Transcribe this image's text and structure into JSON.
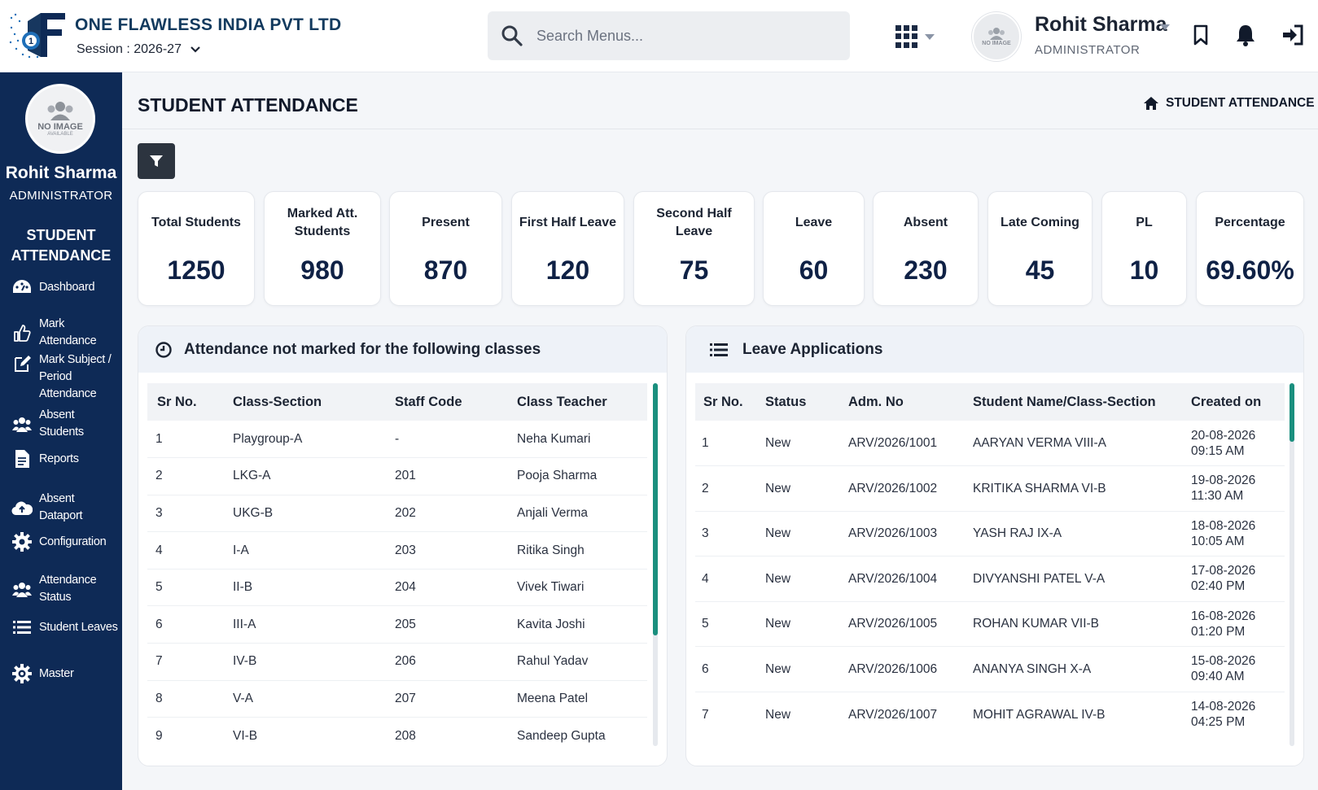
{
  "header": {
    "company": "ONE FLAWLESS INDIA PVT LTD",
    "session": "Session : 2026-27",
    "search_placeholder": "Search Menus...",
    "user_name": "Rohit Sharma",
    "user_role": "ADMINISTRATOR",
    "avatar_text": "NO IMAGE",
    "icons": [
      "search-icon",
      "apps-grid-icon",
      "bookmark-icon",
      "bell-icon",
      "logout-icon"
    ]
  },
  "sidebar": {
    "avatar_line1": "NO IMAGE",
    "avatar_line2": "AVAILABLE",
    "name": "Rohit Sharma",
    "role": "ADMINISTRATOR",
    "section_line1": "STUDENT",
    "section_line2": "ATTENDANCE",
    "items": [
      {
        "label": "Dashboard",
        "icon": "dashboard-icon"
      },
      {
        "label": "Mark Attendance",
        "icon": "thumbs-up-icon"
      },
      {
        "label": "Mark Subject / Period Attendance",
        "icon": "edit-icon"
      },
      {
        "label": "Absent Students",
        "icon": "users-icon"
      },
      {
        "label": "Reports",
        "icon": "document-icon"
      },
      {
        "label": "Absent Dataport",
        "icon": "cloud-upload-icon"
      },
      {
        "label": "Configuration",
        "icon": "gear-icon"
      },
      {
        "label": "Attendance Status",
        "icon": "users-icon"
      },
      {
        "label": "Student Leaves",
        "icon": "list-icon"
      },
      {
        "label": "Master",
        "icon": "gears-icon"
      }
    ]
  },
  "page": {
    "title": "STUDENT ATTENDANCE",
    "breadcrumb": "STUDENT ATTENDANCE"
  },
  "stats": [
    {
      "label": "Total Students",
      "value": "1250"
    },
    {
      "label": "Marked Att. Students",
      "value": "980"
    },
    {
      "label": "Present",
      "value": "870"
    },
    {
      "label": "First Half Leave",
      "value": "120"
    },
    {
      "label": "Second Half Leave",
      "value": "75"
    },
    {
      "label": "Leave",
      "value": "60"
    },
    {
      "label": "Absent",
      "value": "230"
    },
    {
      "label": "Late Coming",
      "value": "45"
    },
    {
      "label": "PL",
      "value": "10"
    },
    {
      "label": "Percentage",
      "value": "69.60%"
    }
  ],
  "not_marked": {
    "title": "Attendance not marked for the following classes",
    "columns": [
      "Sr No.",
      "Class-Section",
      "Staff Code",
      "Class Teacher"
    ],
    "rows": [
      [
        "1",
        "Playgroup-A",
        "-",
        "Neha Kumari"
      ],
      [
        "2",
        "LKG-A",
        "201",
        "Pooja Sharma"
      ],
      [
        "3",
        "UKG-B",
        "202",
        "Anjali Verma"
      ],
      [
        "4",
        "I-A",
        "203",
        "Ritika Singh"
      ],
      [
        "5",
        "II-B",
        "204",
        "Vivek Tiwari"
      ],
      [
        "6",
        "III-A",
        "205",
        "Kavita Joshi"
      ],
      [
        "7",
        "IV-B",
        "206",
        "Rahul Yadav"
      ],
      [
        "8",
        "V-A",
        "207",
        "Meena Patel"
      ],
      [
        "9",
        "VI-B",
        "208",
        "Sandeep Gupta"
      ]
    ]
  },
  "leave_apps": {
    "title": "Leave Applications",
    "columns": [
      "Sr No.",
      "Status",
      "Adm. No",
      "Student Name/Class-Section",
      "Created on"
    ],
    "rows": [
      [
        "1",
        "New",
        "ARV/2026/1001",
        "AARYAN VERMA VIII-A",
        "20-08-2026",
        "09:15 AM"
      ],
      [
        "2",
        "New",
        "ARV/2026/1002",
        "KRITIKA SHARMA VI-B",
        "19-08-2026",
        "11:30 AM"
      ],
      [
        "3",
        "New",
        "ARV/2026/1003",
        "YASH RAJ IX-A",
        "18-08-2026",
        "10:05 AM"
      ],
      [
        "4",
        "New",
        "ARV/2026/1004",
        "DIVYANSHI PATEL V-A",
        "17-08-2026",
        "02:40 PM"
      ],
      [
        "5",
        "New",
        "ARV/2026/1005",
        "ROHAN KUMAR VII-B",
        "16-08-2026",
        "01:20 PM"
      ],
      [
        "6",
        "New",
        "ARV/2026/1006",
        "ANANYA SINGH X-A",
        "15-08-2026",
        "09:40 AM"
      ],
      [
        "7",
        "New",
        "ARV/2026/1007",
        "MOHIT AGRAWAL IV-B",
        "14-08-2026",
        "04:25 PM"
      ]
    ]
  },
  "colors": {
    "sidebar_bg": "#0e2a56",
    "brand_text": "#123a5e",
    "scrollbar_accent": "#1a8f7e"
  }
}
